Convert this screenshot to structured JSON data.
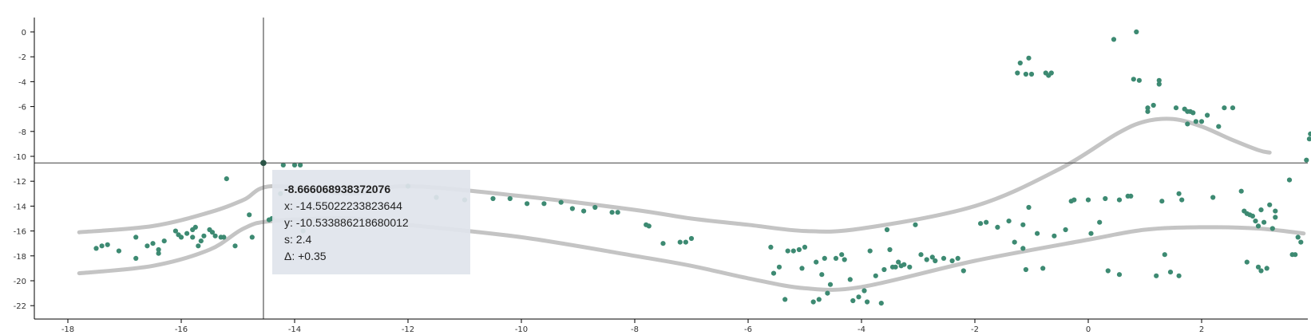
{
  "chart_data": {
    "type": "scatter",
    "title": "",
    "xlabel": "",
    "ylabel": "",
    "xlim": [
      -18.5,
      3.8
    ],
    "ylim": [
      -23,
      1.2
    ],
    "x_ticks": [
      -18,
      -16,
      -14,
      -12,
      -10,
      -8,
      -6,
      -4,
      -2,
      0,
      2
    ],
    "y_ticks": [
      0,
      -2,
      -4,
      -6,
      -8,
      -10,
      -12,
      -14,
      -16,
      -18,
      -20,
      -22
    ],
    "grid": false,
    "point_color": "#3d8a72",
    "band_color": "#c4c4c4",
    "crosshair": {
      "x": -14.55022233823644,
      "y": -10.533886218680012
    },
    "bands": [
      {
        "x": [
          -17.8,
          -16.5,
          -15.5,
          -14.9,
          -14.4,
          -13,
          -12,
          -10,
          -8,
          -7,
          -6,
          -5,
          -4,
          -2,
          -0.5,
          0.5,
          1,
          1.5,
          2,
          2.5,
          3,
          3.2
        ],
        "y": [
          -16.1,
          -15.6,
          -14.5,
          -13.5,
          -12.4,
          -13,
          -12.4,
          -13.2,
          -14.3,
          -15,
          -15.5,
          -16,
          -15.8,
          -14,
          -11,
          -8.2,
          -7.2,
          -7,
          -7.6,
          -8.6,
          -9.5,
          -9.7
        ]
      },
      {
        "x": [
          -17.8,
          -16.5,
          -15.5,
          -14.9,
          -14.4,
          -13,
          -12,
          -10,
          -8,
          -7,
          -6,
          -5,
          -4,
          -2,
          0,
          1,
          2,
          3,
          3.8
        ],
        "y": [
          -19.4,
          -18.8,
          -17.5,
          -15.8,
          -15.2,
          -15,
          -15.5,
          -16.5,
          -18,
          -18.8,
          -19.8,
          -20.6,
          -20.5,
          -18.4,
          -16.7,
          -15.9,
          -15.7,
          -15.8,
          -16.2
        ]
      }
    ],
    "points": [
      [
        -17.5,
        -17.4
      ],
      [
        -17.4,
        -17.2
      ],
      [
        -17.3,
        -17.1
      ],
      [
        -17.1,
        -17.6
      ],
      [
        -16.8,
        -16.5
      ],
      [
        -16.8,
        -18.2
      ],
      [
        -16.6,
        -17.2
      ],
      [
        -16.5,
        -17
      ],
      [
        -16.4,
        -17.5
      ],
      [
        -16.4,
        -17.8
      ],
      [
        -16.3,
        -16.8
      ],
      [
        -16.1,
        -16
      ],
      [
        -16.05,
        -16.3
      ],
      [
        -16,
        -16.5
      ],
      [
        -15.9,
        -16.2
      ],
      [
        -15.8,
        -15.9
      ],
      [
        -15.8,
        -16.5
      ],
      [
        -15.75,
        -15.7
      ],
      [
        -15.7,
        -17.2
      ],
      [
        -15.65,
        -16.8
      ],
      [
        -15.6,
        -16.4
      ],
      [
        -15.5,
        -15.9
      ],
      [
        -15.45,
        -16.1
      ],
      [
        -15.4,
        -16.4
      ],
      [
        -15.3,
        -16.5
      ],
      [
        -15.25,
        -16.5
      ],
      [
        -15.2,
        -11.8
      ],
      [
        -15.05,
        -17.2
      ],
      [
        -14.8,
        -14.7
      ],
      [
        -14.75,
        -16.5
      ],
      [
        -14.45,
        -15.1
      ],
      [
        -14.4,
        -15
      ],
      [
        -14.25,
        -13
      ],
      [
        -14.2,
        -10.7
      ],
      [
        -14,
        -10.7
      ],
      [
        -13.9,
        -10.7
      ],
      [
        -13.85,
        -16
      ],
      [
        -12,
        -12.4
      ],
      [
        -11.5,
        -13.3
      ],
      [
        -11,
        -13.5
      ],
      [
        -10.5,
        -13.4
      ],
      [
        -10.2,
        -13.4
      ],
      [
        -9.9,
        -13.8
      ],
      [
        -9.6,
        -13.8
      ],
      [
        -9.3,
        -13.7
      ],
      [
        -9.1,
        -14.2
      ],
      [
        -8.9,
        -14.4
      ],
      [
        -8.7,
        -14.1
      ],
      [
        -8.4,
        -14.5
      ],
      [
        -8.3,
        -14.5
      ],
      [
        -7.8,
        -15.5
      ],
      [
        -7.75,
        -15.6
      ],
      [
        -7.5,
        -17
      ],
      [
        -7.2,
        -16.9
      ],
      [
        -7.1,
        -16.9
      ],
      [
        -7,
        -16.6
      ],
      [
        -5.6,
        -17.3
      ],
      [
        -5.55,
        -19.4
      ],
      [
        -5.45,
        -18.9
      ],
      [
        -5.35,
        -21.5
      ],
      [
        -5.3,
        -17.6
      ],
      [
        -5.2,
        -17.6
      ],
      [
        -5.1,
        -17.5
      ],
      [
        -5.05,
        -19
      ],
      [
        -5,
        -17.3
      ],
      [
        -4.85,
        -21.7
      ],
      [
        -4.8,
        -18.5
      ],
      [
        -4.75,
        -21.5
      ],
      [
        -4.7,
        -19.5
      ],
      [
        -4.65,
        -18.2
      ],
      [
        -4.6,
        -21
      ],
      [
        -4.55,
        -20.3
      ],
      [
        -4.45,
        -18.2
      ],
      [
        -4.35,
        -17.9
      ],
      [
        -4.3,
        -18.3
      ],
      [
        -4.2,
        -19.9
      ],
      [
        -4.15,
        -21.6
      ],
      [
        -4.05,
        -21.3
      ],
      [
        -3.95,
        -20.8
      ],
      [
        -3.9,
        -21.7
      ],
      [
        -3.85,
        -17.6
      ],
      [
        -3.75,
        -19.6
      ],
      [
        -3.65,
        -21.8
      ],
      [
        -3.6,
        -19.1
      ],
      [
        -3.55,
        -15.9
      ],
      [
        -3.5,
        -17.5
      ],
      [
        -3.45,
        -18.9
      ],
      [
        -3.4,
        -18.9
      ],
      [
        -3.35,
        -18.5
      ],
      [
        -3.3,
        -18.8
      ],
      [
        -3.25,
        -18.7
      ],
      [
        -3.15,
        -18.9
      ],
      [
        -3.05,
        -15.5
      ],
      [
        -2.95,
        -17.9
      ],
      [
        -2.85,
        -18.3
      ],
      [
        -2.75,
        -18.1
      ],
      [
        -2.7,
        -18.4
      ],
      [
        -2.55,
        -18.2
      ],
      [
        -2.4,
        -18.4
      ],
      [
        -2.3,
        -18.2
      ],
      [
        -2.2,
        -19.2
      ],
      [
        -1.9,
        -15.4
      ],
      [
        -1.8,
        -15.3
      ],
      [
        -1.6,
        -15.7
      ],
      [
        -1.4,
        -15.2
      ],
      [
        -1.3,
        -16.9
      ],
      [
        -1.25,
        -3.3
      ],
      [
        -1.2,
        -2.5
      ],
      [
        -1.15,
        -15.5
      ],
      [
        -1.15,
        -17.4
      ],
      [
        -1.1,
        -19.1
      ],
      [
        -1.1,
        -3.4
      ],
      [
        -1.05,
        -2.1
      ],
      [
        -1.05,
        -14.1
      ],
      [
        -1,
        -3.4
      ],
      [
        -0.9,
        -16.2
      ],
      [
        -0.8,
        -19
      ],
      [
        -0.75,
        -3.3
      ],
      [
        -0.7,
        -3.5
      ],
      [
        -0.65,
        -3.3
      ],
      [
        -0.6,
        -16.4
      ],
      [
        -0.4,
        -15.9
      ],
      [
        -0.3,
        -13.6
      ],
      [
        -0.25,
        -13.5
      ],
      [
        0,
        -13.5
      ],
      [
        0.05,
        -16.2
      ],
      [
        0.2,
        -15.3
      ],
      [
        0.3,
        -13.4
      ],
      [
        0.35,
        -19.2
      ],
      [
        0.45,
        -0.6
      ],
      [
        0.55,
        -13.5
      ],
      [
        0.55,
        -19.5
      ],
      [
        0.7,
        -13.2
      ],
      [
        0.75,
        -13.2
      ],
      [
        0.8,
        -3.8
      ],
      [
        0.85,
        0
      ],
      [
        0.9,
        -3.9
      ],
      [
        1.05,
        -6.4
      ],
      [
        1.05,
        -6.1
      ],
      [
        1.15,
        -5.9
      ],
      [
        1.2,
        -19.6
      ],
      [
        1.25,
        -4.2
      ],
      [
        1.25,
        -3.9
      ],
      [
        1.3,
        -13.6
      ],
      [
        1.35,
        -17.9
      ],
      [
        1.45,
        -19.3
      ],
      [
        1.55,
        -6.1
      ],
      [
        1.6,
        -19.6
      ],
      [
        1.6,
        -13
      ],
      [
        1.65,
        -13.5
      ],
      [
        1.7,
        -6.2
      ],
      [
        1.75,
        -6.4
      ],
      [
        1.75,
        -7.4
      ],
      [
        1.8,
        -6.4
      ],
      [
        1.85,
        -6.5
      ],
      [
        1.9,
        -7.2
      ],
      [
        2,
        -7.2
      ],
      [
        2.1,
        -6.7
      ],
      [
        2.2,
        -13.3
      ],
      [
        2.3,
        -7.6
      ],
      [
        2.4,
        -6.1
      ],
      [
        2.55,
        -6.1
      ],
      [
        2.7,
        -12.8
      ],
      [
        2.75,
        -14.4
      ],
      [
        2.8,
        -18.5
      ],
      [
        2.8,
        -14.6
      ],
      [
        2.85,
        -14.7
      ],
      [
        2.9,
        -14.8
      ],
      [
        2.95,
        -15.2
      ],
      [
        3,
        -15.6
      ],
      [
        3,
        -18.9
      ],
      [
        3.05,
        -14.3
      ],
      [
        3.05,
        -19.2
      ],
      [
        3.1,
        -15.3
      ],
      [
        3.15,
        -19
      ],
      [
        3.2,
        -13.9
      ],
      [
        3.25,
        -15.8
      ],
      [
        3.3,
        -14.4
      ],
      [
        3.3,
        -14.9
      ],
      [
        3.55,
        -11.9
      ],
      [
        3.6,
        -17.9
      ],
      [
        3.65,
        -17.9
      ],
      [
        3.7,
        -16.5
      ],
      [
        3.75,
        -16.9
      ],
      [
        3.85,
        -10.3
      ],
      [
        3.9,
        -8.6
      ],
      [
        3.92,
        -8.2
      ]
    ],
    "tooltip": {
      "title": "-8.666068938372076",
      "x_line": "x: -14.55022233823644",
      "y_line": "y: -10.533886218680012",
      "s_line": "s: 2.4",
      "delta_line": "Δ: +0.35"
    }
  }
}
